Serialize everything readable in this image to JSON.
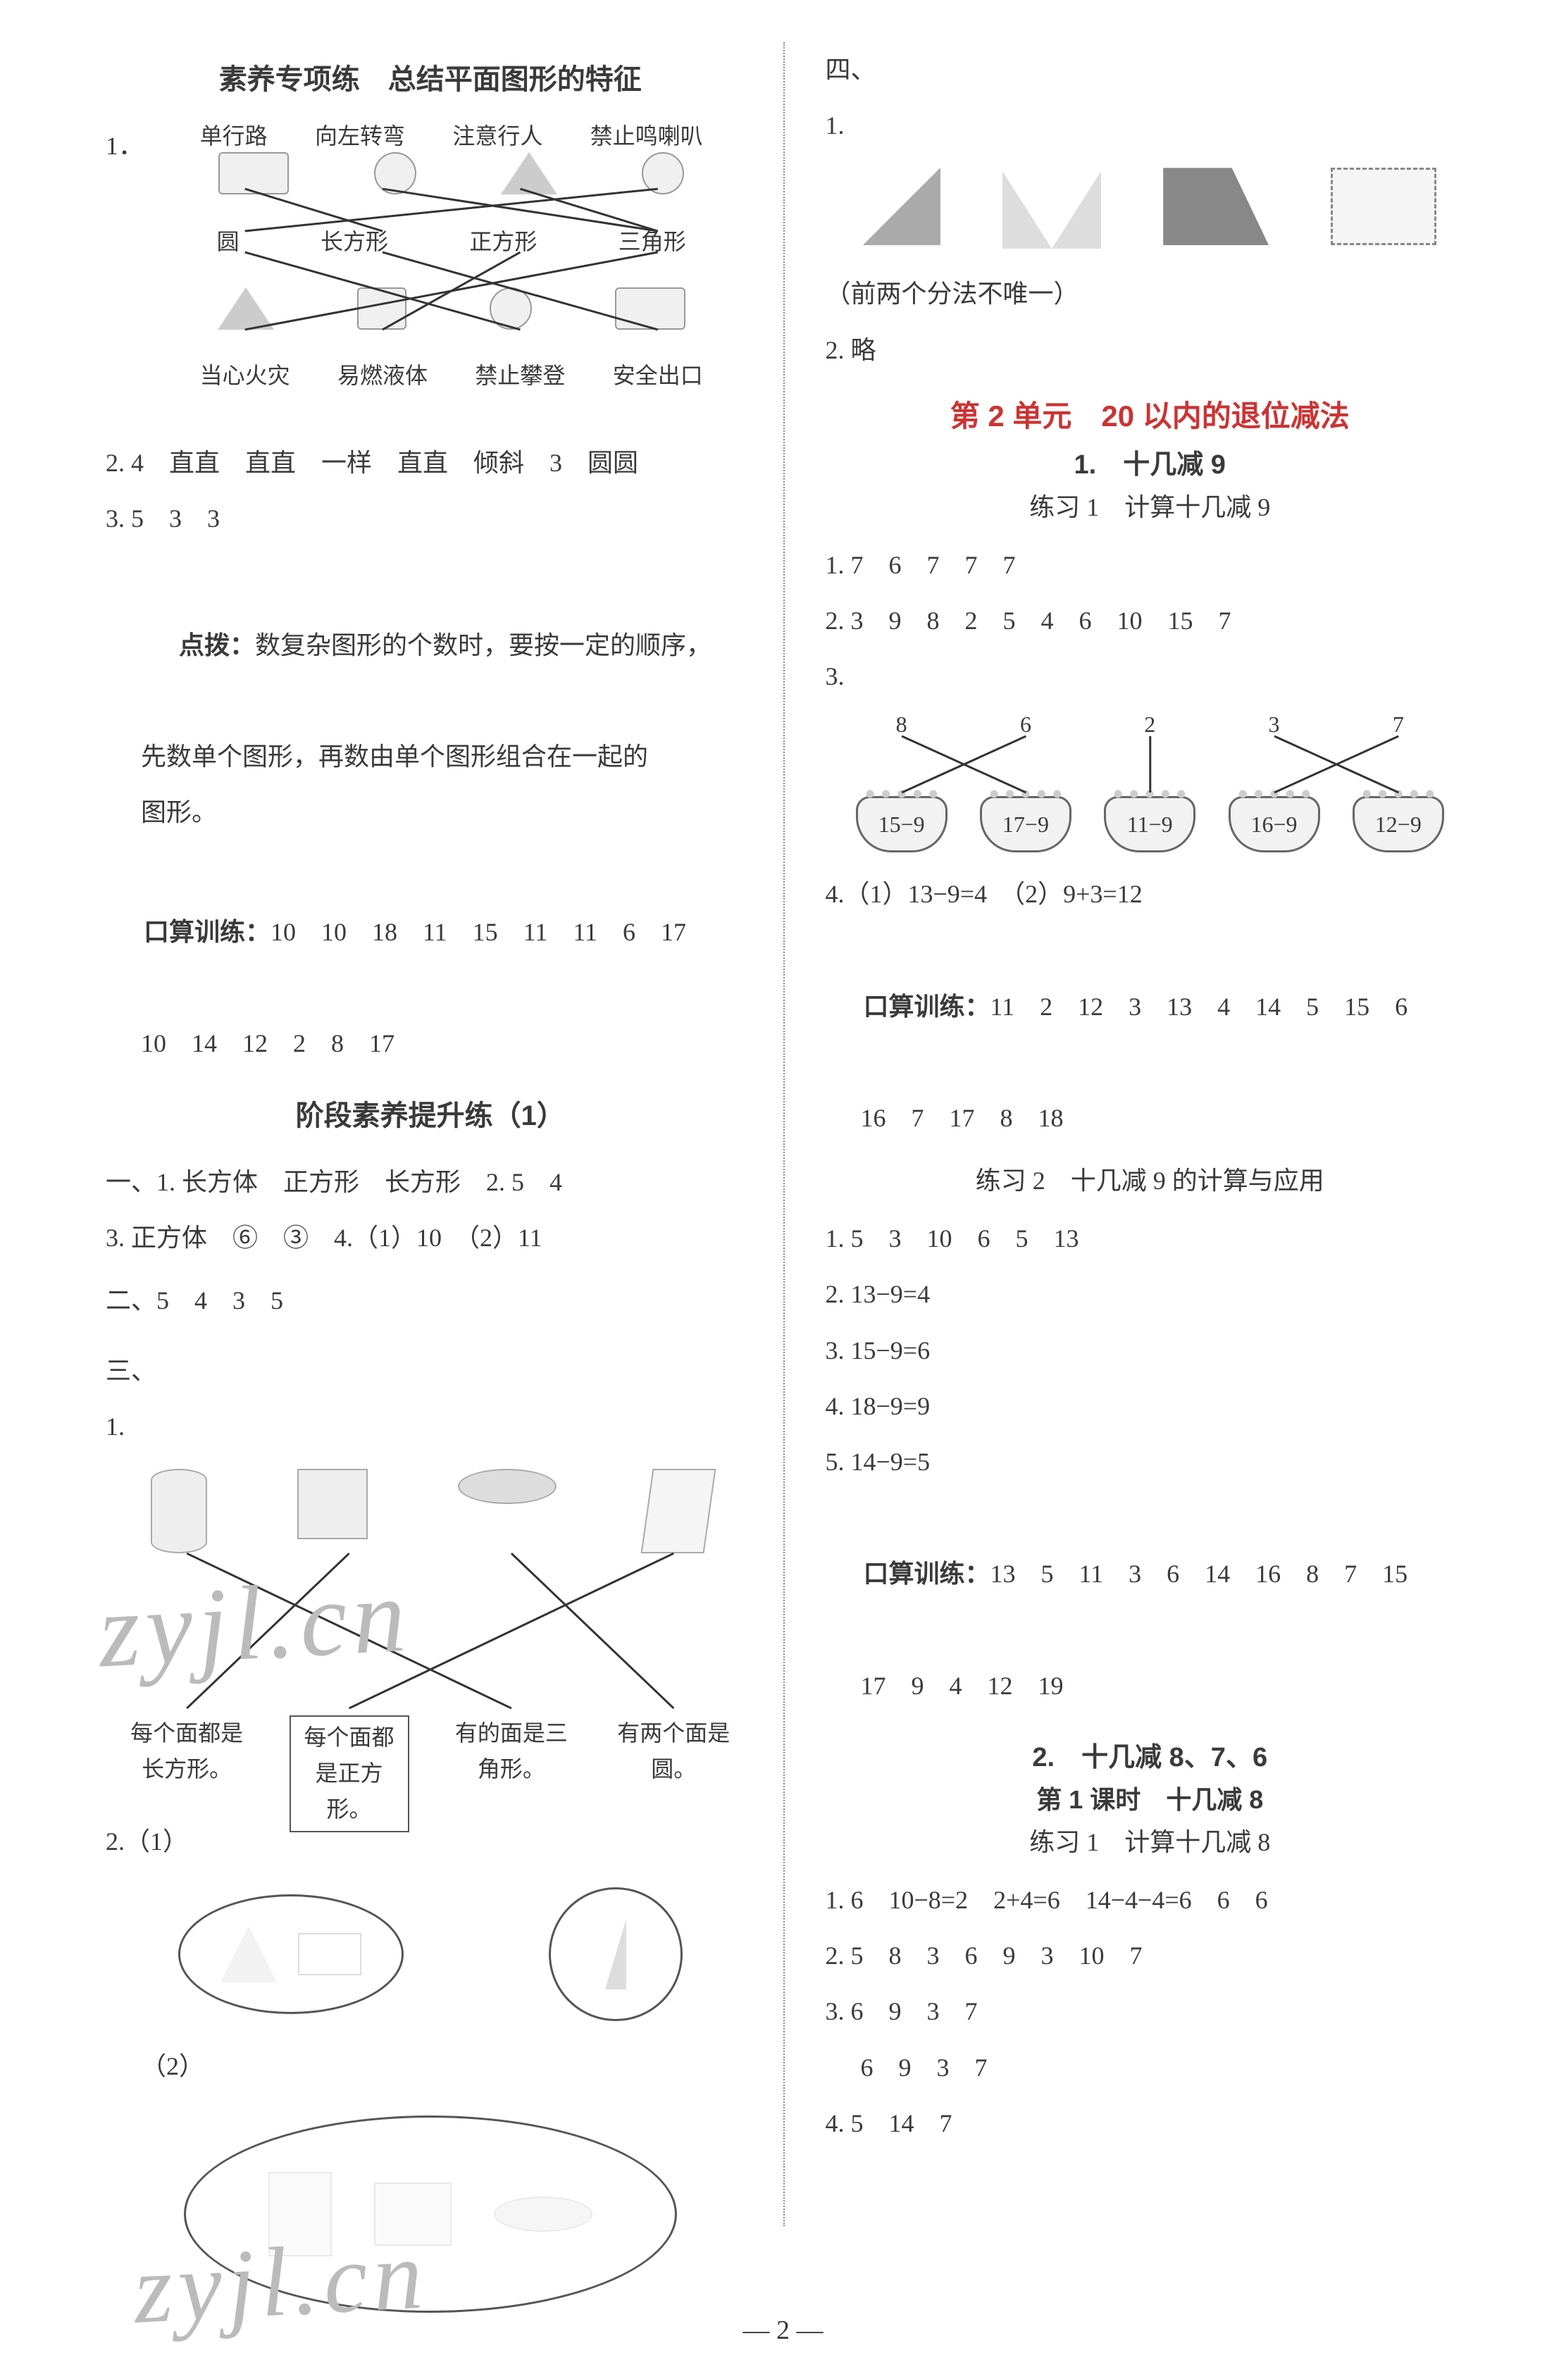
{
  "left": {
    "title1": "素养专项练　总结平面图形的特征",
    "q1": {
      "prefix": "1．",
      "top_labels": [
        "单行路",
        "向左转弯",
        "注意行人",
        "禁止鸣喇叭"
      ],
      "mid_labels": [
        "圆",
        "长方形",
        "正方形",
        "三角形"
      ],
      "bot_labels": [
        "当心火灾",
        "易燃液体",
        "禁止攀登",
        "安全出口"
      ],
      "top_to_mid": [
        [
          0,
          1
        ],
        [
          1,
          3
        ],
        [
          2,
          3
        ],
        [
          3,
          0
        ]
      ],
      "mid_to_bot": [
        [
          0,
          2
        ],
        [
          1,
          3
        ],
        [
          2,
          1
        ],
        [
          3,
          0
        ]
      ],
      "line_color": "#333333"
    },
    "q2": "2. 4　直直　直直　一样　直直　倾斜　3　圆圆",
    "q3": "3. 5　3　3",
    "dianbo_label": "点拨：",
    "dianbo_text1": "数复杂图形的个数时，要按一定的顺序，",
    "dianbo_text2": "先数单个图形，再数由单个图形组合在一起的",
    "dianbo_text3": "图形。",
    "ks_label": "口算训练：",
    "ks1": "10　10　18　11　15　11　11　6　17",
    "ks2": "10　14　12　2　8　17",
    "title2": "阶段素养提升练（1）",
    "s1_1": "一、1. 长方体　正方形　长方形　2. 5　4",
    "s1_3": "3. 正方体　⑥　③　4.（1）10　（2）11",
    "s2": "二、5　4　3　5",
    "s3_header": "三、",
    "s3_1": "1.",
    "s3_labels": [
      "每个面都是长方形。",
      "每个面都是正方形。",
      "有的面是三角形。",
      "有两个面是圆。"
    ],
    "s3_lines": [
      [
        0,
        2
      ],
      [
        1,
        0
      ],
      [
        2,
        3
      ],
      [
        3,
        1
      ]
    ],
    "s3_boxed_index": 1,
    "s2q2_1": "2.（1）",
    "s2q2_2": "（2）"
  },
  "right": {
    "four": "四、",
    "one": "1.",
    "note1": "（前两个分法不唯一）",
    "q2": "2. 略",
    "unit_title": "第 2 单元　20 以内的退位减法",
    "sec1_title": "1.　十几减 9",
    "sec1_sub": "练习 1　计算十几减 9",
    "l1_1": "1. 7　6　7　7　7",
    "l1_2": "2. 3　9　8　2　5　4　6　10　15　7",
    "l1_3": "3.",
    "r3_top": [
      "8",
      "6",
      "2",
      "3",
      "7"
    ],
    "r3_bot": [
      "15−9",
      "17−9",
      "11−9",
      "16−9",
      "12−9"
    ],
    "r3_lines": [
      [
        0,
        1
      ],
      [
        1,
        0
      ],
      [
        2,
        2
      ],
      [
        3,
        4
      ],
      [
        4,
        3
      ]
    ],
    "l1_4": "4.（1）13−9=4　（2）9+3=12",
    "ks_label": "口算训练：",
    "ks1_a": "11　2　12　3　13　4　14　5　15　6",
    "ks1_b": "16　7　17　8　18",
    "sec2_sub": "练习 2　十几减 9 的计算与应用",
    "l2_1": "1. 5　3　10　6　5　13",
    "l2_2": "2. 13−9=4",
    "l2_3": "3. 15−9=6",
    "l2_4": "4. 18−9=9",
    "l2_5": "5. 14−9=5",
    "ks2_a": "13　5　11　3　6　14　16　8　7　15",
    "ks2_b": "17　9　4　12　19",
    "sec3_title": "2.　十几减 8、7、6",
    "sec3_sub1": "第 1 课时　十几减 8",
    "sec3_sub2": "练习 1　计算十几减 8",
    "l3_1": "1. 6　10−8=2　2+4=6　14−4−4=6　6　6",
    "l3_2": "2. 5　8　3　6　9　3　10　7",
    "l3_3": "3. 6　9　3　7",
    "l3_3b": "6　9　3　7",
    "l3_4": "4. 5　14　7"
  },
  "watermark": "zyjl.cn",
  "page_num": "— 2 —",
  "colors": {
    "text": "#3a3a3a",
    "red": "#cc3333",
    "line": "#333333",
    "border": "#555555",
    "faded": "#bbbbbb"
  }
}
